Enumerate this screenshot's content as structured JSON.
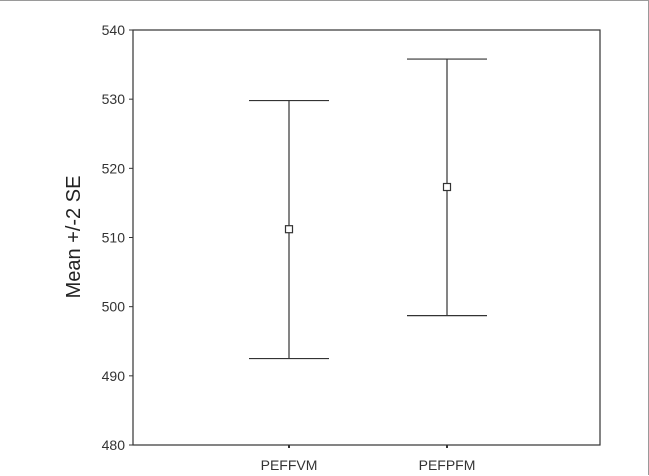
{
  "chart_data": {
    "type": "errorbar",
    "ylabel": "Mean +/-2 SE",
    "ylim": [
      480,
      540
    ],
    "yticks": [
      480,
      490,
      500,
      510,
      520,
      530,
      540
    ],
    "categories": [
      "PEFFVM",
      "PEFPFM"
    ],
    "series": [
      {
        "mean": [
          511.2,
          517.3
        ],
        "lower": [
          492.5,
          498.7
        ],
        "upper": [
          529.8,
          535.8
        ]
      }
    ],
    "grid": false,
    "colors": {
      "line": "#333333",
      "frame": "#333333"
    }
  }
}
